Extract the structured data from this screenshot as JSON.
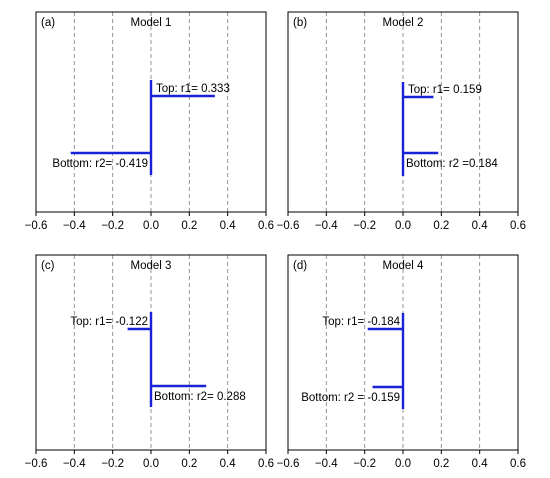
{
  "chart_data": [
    {
      "type": "bar",
      "panel_label": "(a)",
      "title": "Model 1",
      "xlim": [
        -0.6,
        0.6
      ],
      "x_ticks": [
        "−0.6",
        "−0.4",
        "−0.2",
        "0.0",
        "0.2",
        "0.4",
        "0.6"
      ],
      "grid": "vertical dashed",
      "bars": [
        {
          "label": "Top: r1= 0.333",
          "value": 0.333,
          "position": "top"
        },
        {
          "label": "Bottom: r2= -0.419",
          "value": -0.419,
          "position": "bottom"
        }
      ]
    },
    {
      "type": "bar",
      "panel_label": "(b)",
      "title": "Model 2",
      "xlim": [
        -0.6,
        0.6
      ],
      "x_ticks": [
        "−0.6",
        "−0.4",
        "−0.2",
        "0.0",
        "0.2",
        "0.4",
        "0.6"
      ],
      "grid": "vertical dashed",
      "bars": [
        {
          "label": "Top: r1= 0.159",
          "value": 0.159,
          "position": "top"
        },
        {
          "label": "Bottom: r2 =0.184",
          "value": 0.184,
          "position": "bottom"
        }
      ]
    },
    {
      "type": "bar",
      "panel_label": "(c)",
      "title": "Model 3",
      "xlim": [
        -0.6,
        0.6
      ],
      "x_ticks": [
        "−0.6",
        "−0.4",
        "−0.2",
        "0.0",
        "0.2",
        "0.4",
        "0.6"
      ],
      "grid": "vertical dashed",
      "bars": [
        {
          "label": "Top: r1= -0.122",
          "value": -0.122,
          "position": "top"
        },
        {
          "label": "Bottom: r2= 0.288",
          "value": 0.288,
          "position": "bottom"
        }
      ]
    },
    {
      "type": "bar",
      "panel_label": "(d)",
      "title": "Model 4",
      "xlim": [
        -0.6,
        0.6
      ],
      "x_ticks": [
        "−0.6",
        "−0.4",
        "−0.2",
        "0.0",
        "0.2",
        "0.4",
        "0.6"
      ],
      "grid": "vertical dashed",
      "bars": [
        {
          "label": "Top: r1= -0.184",
          "value": -0.184,
          "position": "top"
        },
        {
          "label": "Bottom: r2 = -0.159",
          "value": -0.159,
          "position": "bottom"
        }
      ]
    }
  ],
  "colors": {
    "line": "#1a22d6",
    "grid": "#8a8a8a",
    "frame": "#000000"
  }
}
